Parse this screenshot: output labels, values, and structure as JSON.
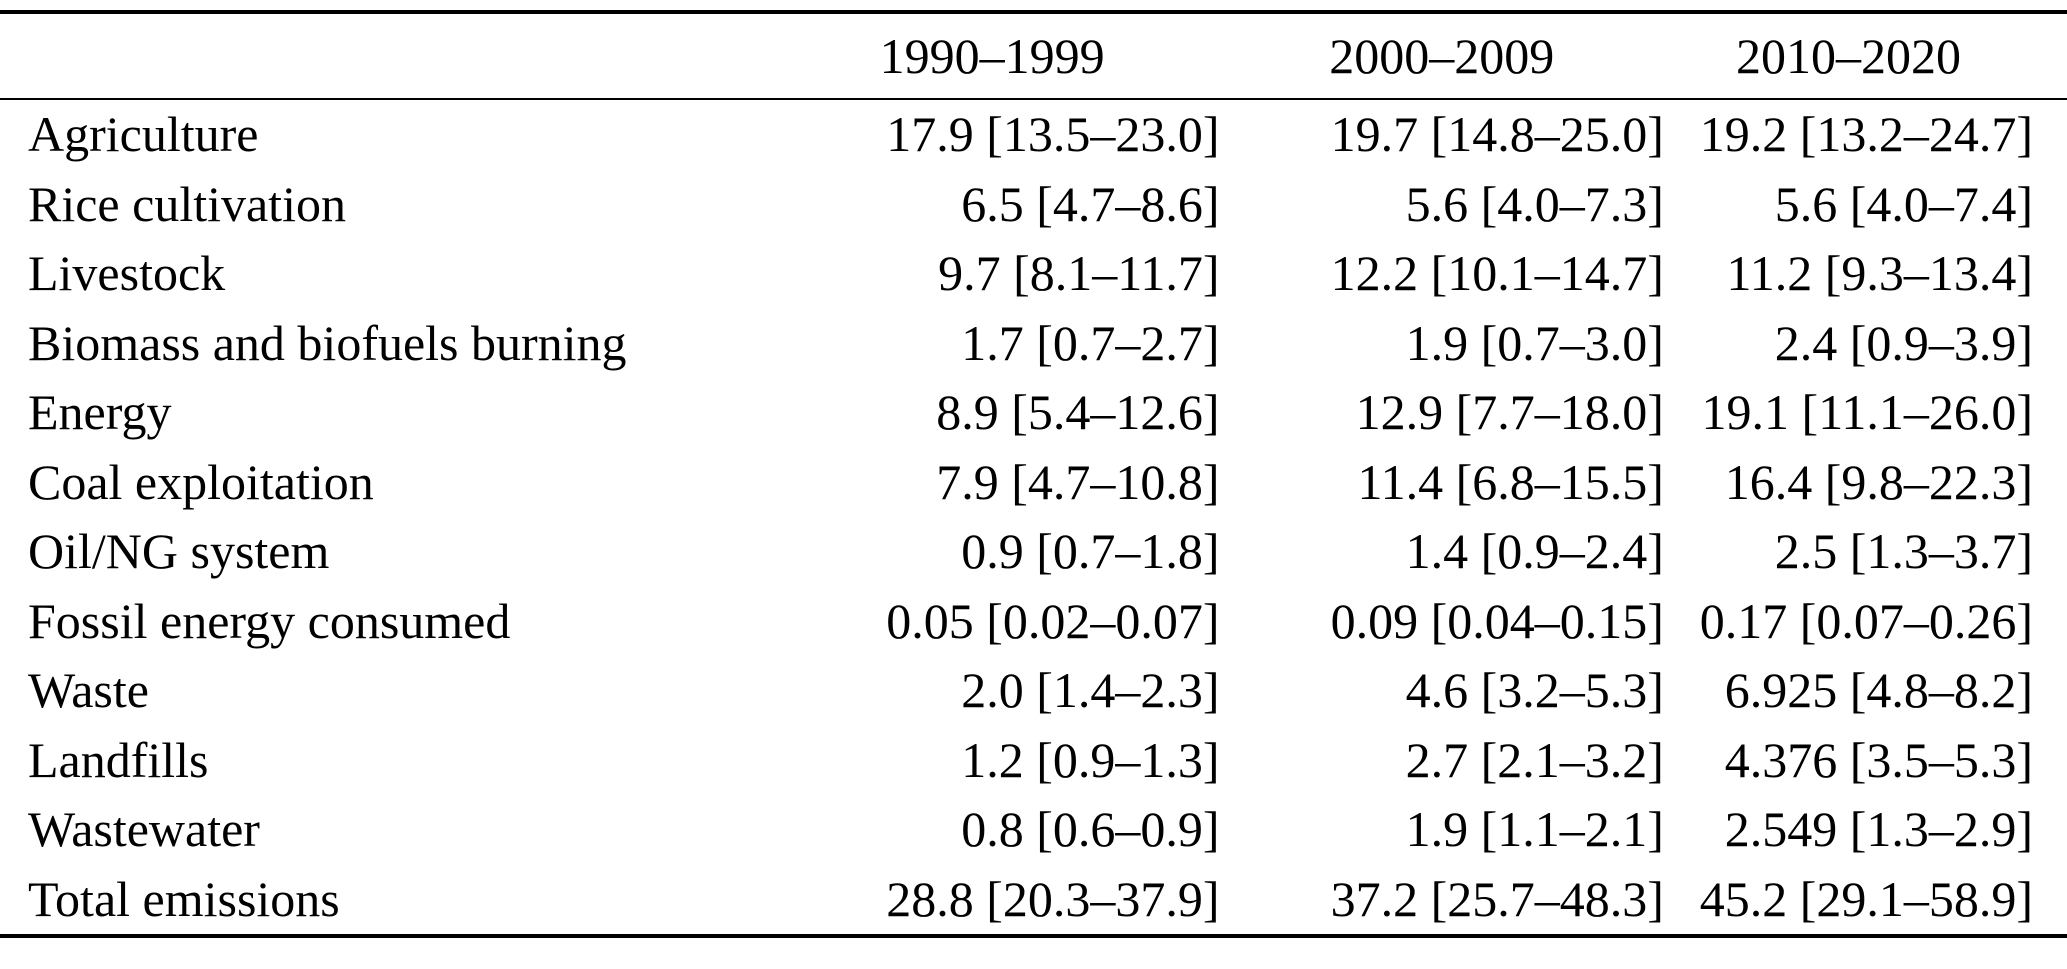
{
  "table": {
    "corner_label": "",
    "columns": [
      "1990–1999",
      "2000–2009",
      "2010–2020"
    ],
    "rows": [
      {
        "label": "Agriculture",
        "values": [
          "17.9 [13.5–23.0]",
          "19.7 [14.8–25.0]",
          "19.2 [13.2–24.7]"
        ]
      },
      {
        "label": "Rice cultivation",
        "values": [
          "6.5 [4.7–8.6]",
          "5.6 [4.0–7.3]",
          "5.6 [4.0–7.4]"
        ]
      },
      {
        "label": "Livestock",
        "values": [
          "9.7 [8.1–11.7]",
          "12.2 [10.1–14.7]",
          "11.2 [9.3–13.4]"
        ]
      },
      {
        "label": "Biomass and biofuels burning",
        "values": [
          "1.7 [0.7–2.7]",
          "1.9 [0.7–3.0]",
          "2.4 [0.9–3.9]"
        ]
      },
      {
        "label": "Energy",
        "values": [
          "8.9 [5.4–12.6]",
          "12.9 [7.7–18.0]",
          "19.1 [11.1–26.0]"
        ]
      },
      {
        "label": "Coal exploitation",
        "values": [
          "7.9 [4.7–10.8]",
          "11.4 [6.8–15.5]",
          "16.4 [9.8–22.3]"
        ]
      },
      {
        "label": "Oil/NG system",
        "values": [
          "0.9 [0.7–1.8]",
          "1.4 [0.9–2.4]",
          "2.5 [1.3–3.7]"
        ]
      },
      {
        "label": "Fossil energy consumed",
        "values": [
          "0.05 [0.02–0.07]",
          "0.09 [0.04–0.15]",
          "0.17 [0.07–0.26]"
        ]
      },
      {
        "label": "Waste",
        "values": [
          "2.0 [1.4–2.3]",
          "4.6 [3.2–5.3]",
          "6.925 [4.8–8.2]"
        ]
      },
      {
        "label": "Landfills",
        "values": [
          "1.2 [0.9–1.3]",
          "2.7 [2.1–3.2]",
          "4.376 [3.5–5.3]"
        ]
      },
      {
        "label": "Wastewater",
        "values": [
          "0.8 [0.6–0.9]",
          "1.9 [1.1–2.1]",
          "2.549 [1.3–2.9]"
        ]
      },
      {
        "label": "Total emissions",
        "values": [
          "28.8 [20.3–37.9]",
          "37.2 [25.7–48.3]",
          "45.2 [29.1–58.9]"
        ]
      }
    ]
  }
}
